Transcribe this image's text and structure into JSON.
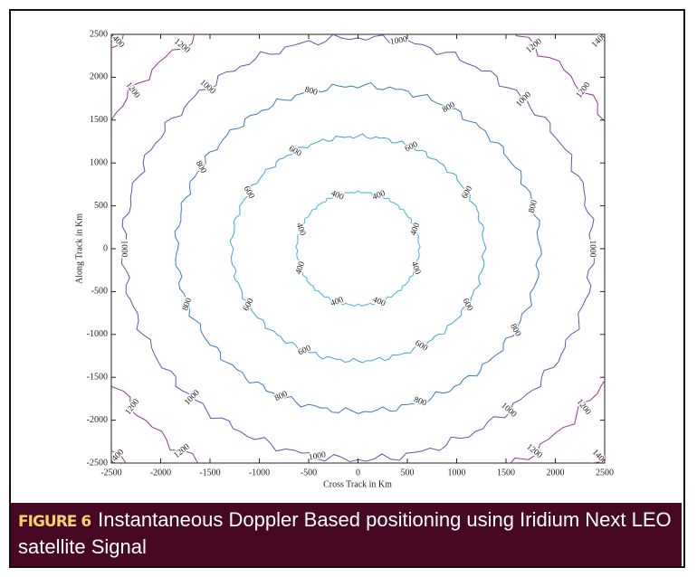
{
  "chart_data": {
    "type": "contour",
    "xlabel": "Cross Track in Km",
    "ylabel": "Along Track in Km",
    "xlim": [
      -2500,
      2500
    ],
    "ylim": [
      -2500,
      2500
    ],
    "xticks": [
      -2500,
      -2000,
      -1500,
      -1000,
      -500,
      0,
      500,
      1000,
      1500,
      2000,
      2500
    ],
    "yticks": [
      -2500,
      -2000,
      -1500,
      -1000,
      -500,
      0,
      500,
      1000,
      1500,
      2000,
      2500
    ],
    "contours": [
      {
        "level": 400,
        "rx": 620,
        "ry": 660,
        "color": "#45b4e6"
      },
      {
        "level": 600,
        "rx": 1280,
        "ry": 1310,
        "color": "#3fa2d8"
      },
      {
        "level": 800,
        "rx": 1840,
        "ry": 1900,
        "color": "#3d78bf"
      },
      {
        "level": 1000,
        "rx": 2375,
        "ry": 2460,
        "color": "#6552ad"
      },
      {
        "level": 1200,
        "rx": 2900,
        "ry": 3000,
        "color": "#93339c"
      },
      {
        "level": 1400,
        "rx": 3400,
        "ry": 3500,
        "color": "#ad2b95"
      }
    ]
  },
  "caption": {
    "label": "FIGURE 6",
    "text": "Instantaneous Doppler Based positioning using Iridium Next LEO satellite Signal"
  }
}
